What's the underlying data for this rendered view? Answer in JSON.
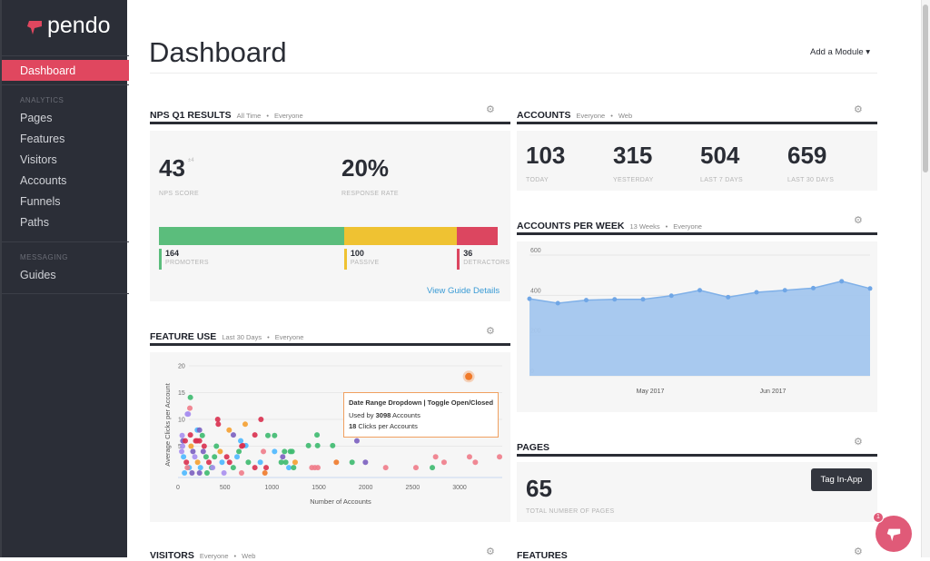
{
  "sidebar": {
    "logo": "pendo",
    "active": "Dashboard",
    "analytics_label": "ANALYTICS",
    "analytics": [
      "Pages",
      "Features",
      "Visitors",
      "Accounts",
      "Funnels",
      "Paths"
    ],
    "messaging_label": "MESSAGING",
    "messaging": [
      "Guides"
    ]
  },
  "header": {
    "title": "Dashboard",
    "add_module": "Add a Module ▾"
  },
  "nps": {
    "title": "NPS Q1 RESULTS",
    "filter1": "All Time",
    "filter2": "Everyone",
    "score": "43",
    "score_delta": "±4",
    "score_label": "NPS SCORE",
    "rate": "20%",
    "rate_label": "RESPONSE RATE",
    "segments": [
      {
        "count": "164",
        "label": "PROMOTERS",
        "color": "#5bbd7c",
        "value": 164
      },
      {
        "count": "100",
        "label": "PASSIVE",
        "color": "#efc232",
        "value": 100
      },
      {
        "count": "36",
        "label": "DETRACTORS",
        "color": "#dc4660",
        "value": 36
      }
    ],
    "link": "View Guide Details"
  },
  "accounts": {
    "title": "ACCOUNTS",
    "filter1": "Everyone",
    "filter2": "Web",
    "stats": [
      {
        "value": "103",
        "label": "TODAY"
      },
      {
        "value": "315",
        "label": "YESTERDAY"
      },
      {
        "value": "504",
        "label": "LAST 7 DAYS"
      },
      {
        "value": "659",
        "label": "LAST 30 DAYS"
      }
    ]
  },
  "apw": {
    "title": "ACCOUNTS PER WEEK",
    "filter1": "13 Weeks",
    "filter2": "Everyone"
  },
  "feature_use": {
    "title": "FEATURE USE",
    "filter1": "Last 30 Days",
    "filter2": "Everyone",
    "tooltip": {
      "title": "Date Range Dropdown | Toggle Open/Closed",
      "line1_pre": "Used by ",
      "line1_val": "3098",
      "line1_post": " Accounts",
      "line2_val": "18",
      "line2_post": " Clicks per Accounts"
    }
  },
  "pages": {
    "title": "PAGES",
    "value": "65",
    "label": "TOTAL NUMBER OF PAGES",
    "button": "Tag In-App"
  },
  "visitors": {
    "title": "VISITORS",
    "filter1": "Everyone",
    "filter2": "Web"
  },
  "features": {
    "title": "FEATURES"
  },
  "help": {
    "badge": "1"
  },
  "chart_data": [
    {
      "type": "area",
      "title": "ACCOUNTS PER WEEK",
      "ylim": [
        0,
        600
      ],
      "yticks": [
        "0",
        "200",
        "400",
        "600"
      ],
      "xticks": [
        "May 2017",
        "Jun 2017"
      ],
      "color": "#a3c6ee",
      "values": [
        383,
        361,
        376,
        380,
        380,
        398,
        425,
        391,
        415,
        425,
        436,
        470,
        434
      ]
    },
    {
      "type": "scatter",
      "title": "FEATURE USE",
      "xlabel": "Number of Accounts",
      "ylabel": "Average Clicks per Account",
      "xlim": [
        0,
        3450
      ],
      "ylim": [
        0,
        20
      ],
      "xticks": [
        "0",
        "500",
        "1000",
        "1500",
        "2000",
        "2500",
        "3000"
      ],
      "yticks": [
        "20",
        "15",
        "10",
        "5"
      ],
      "highlight": {
        "x": 3098,
        "y": 18,
        "color": "#f07a2a"
      },
      "points": [
        [
          103,
          14.1,
          "#3dba6f"
        ],
        [
          97,
          12.1,
          "#f07c8a"
        ],
        [
          71,
          11,
          "#a98ff0"
        ],
        [
          80,
          11,
          "#a98ff0"
        ],
        [
          177,
          8,
          "#4db8ff"
        ],
        [
          200,
          8,
          "#7b5fc0"
        ],
        [
          103,
          7.1,
          "#d9304f"
        ],
        [
          230,
          7,
          "#3dba6f"
        ],
        [
          23,
          6,
          "#7b5fc0"
        ],
        [
          48,
          6,
          "#d9304f"
        ],
        [
          160,
          6,
          "#d9304f"
        ],
        [
          175,
          6,
          "#d9304f"
        ],
        [
          200,
          6,
          "#d9304f"
        ],
        [
          394,
          10,
          "#d9304f"
        ],
        [
          400,
          9.1,
          "#d9304f"
        ],
        [
          855,
          10,
          "#d9304f"
        ],
        [
          687,
          9.1,
          "#f5a030"
        ],
        [
          516,
          8,
          "#f5a030"
        ],
        [
          561,
          7.1,
          "#7b5fc0"
        ],
        [
          790,
          7.1,
          "#d9304f"
        ],
        [
          929,
          7,
          "#3dba6f"
        ],
        [
          1000,
          7,
          "#3dba6f"
        ],
        [
          1452,
          7.1,
          "#3dba6f"
        ],
        [
          639,
          6,
          "#4db8ff"
        ],
        [
          694,
          5.1,
          "#4db8ff"
        ],
        [
          661,
          5.1,
          "#d9304f"
        ],
        [
          1361,
          5.1,
          "#3dba6f"
        ],
        [
          1458,
          5.1,
          "#3dba6f"
        ],
        [
          1619,
          5.1,
          "#3dba6f"
        ],
        [
          1877,
          6,
          "#7b5fc0"
        ],
        [
          2348,
          7.1,
          "#f7b3c0"
        ],
        [
          881,
          4,
          "#f07c8a"
        ],
        [
          1000,
          4,
          "#4db8ff"
        ],
        [
          1106,
          4,
          "#3dba6f"
        ],
        [
          1168,
          4,
          "#3dba6f"
        ],
        [
          1187,
          4,
          "#3dba6f"
        ],
        [
          1087,
          3,
          "#7b5fc0"
        ],
        [
          2716,
          3,
          "#f07c8a"
        ],
        [
          3077,
          3,
          "#f07c8a"
        ],
        [
          3397,
          3,
          "#f07c8a"
        ],
        [
          2806,
          2,
          "#f07c8a"
        ],
        [
          3139,
          2,
          "#f07c8a"
        ],
        [
          1658,
          2,
          "#f07a2a"
        ],
        [
          1826,
          2,
          "#3dba6f"
        ],
        [
          1968,
          2,
          "#7b5fc0"
        ],
        [
          1071,
          2,
          "#3dba6f"
        ],
        [
          1119,
          2,
          "#3dba6f"
        ],
        [
          1219,
          2,
          "#f5a030"
        ],
        [
          848,
          2,
          "#4db8ff"
        ],
        [
          2184,
          1,
          "#f07c8a"
        ],
        [
          2506,
          1,
          "#f07c8a"
        ],
        [
          2681,
          1,
          "#3dba6f"
        ],
        [
          1397,
          1,
          "#f07c8a"
        ],
        [
          1429,
          1,
          "#f07c8a"
        ],
        [
          1461,
          1,
          "#f07c8a"
        ],
        [
          1152,
          1,
          "#4db8ff"
        ],
        [
          1203,
          1,
          "#3dba6f"
        ],
        [
          790,
          1,
          "#d9304f"
        ],
        [
          910,
          1,
          "#d9304f"
        ],
        [
          897,
          0,
          "#f07a2a"
        ],
        [
          648,
          0,
          "#f07c8a"
        ],
        [
          461,
          0,
          "#a98ff0"
        ],
        [
          10,
          4,
          "#a98ff0"
        ],
        [
          30,
          3,
          "#4db8ff"
        ],
        [
          60,
          2,
          "#d9304f"
        ],
        [
          90,
          1,
          "#4db8ff"
        ],
        [
          120,
          0,
          "#7b5fc0"
        ],
        [
          150,
          3,
          "#a98ff0"
        ],
        [
          180,
          2,
          "#f5a030"
        ],
        [
          210,
          1,
          "#4db8ff"
        ],
        [
          240,
          4,
          "#7b5fc0"
        ],
        [
          270,
          3,
          "#3dba6f"
        ],
        [
          300,
          2,
          "#d9304f"
        ],
        [
          330,
          1,
          "#3dba6f"
        ],
        [
          360,
          3,
          "#3dba6f"
        ],
        [
          420,
          4,
          "#f5a030"
        ],
        [
          440,
          2,
          "#4db8ff"
        ],
        [
          490,
          3,
          "#d9304f"
        ],
        [
          520,
          2,
          "#d9304f"
        ],
        [
          600,
          3,
          "#4db8ff"
        ],
        [
          620,
          4,
          "#3dba6f"
        ],
        [
          20,
          5,
          "#a98ff0"
        ],
        [
          110,
          5,
          "#f5a030"
        ],
        [
          130,
          4,
          "#7b5fc0"
        ],
        [
          250,
          5,
          "#d9304f"
        ],
        [
          380,
          5,
          "#3dba6f"
        ],
        [
          40,
          0,
          "#4db8ff"
        ],
        [
          70,
          1,
          "#f07c8a"
        ],
        [
          200,
          0,
          "#7b5fc0"
        ],
        [
          280,
          0,
          "#3dba6f"
        ],
        [
          340,
          1,
          "#a98ff0"
        ],
        [
          15,
          7,
          "#a98ff0"
        ],
        [
          560,
          1,
          "#3dba6f"
        ],
        [
          650,
          5,
          "#d9304f"
        ],
        [
          720,
          2,
          "#3dba6f"
        ]
      ]
    }
  ]
}
